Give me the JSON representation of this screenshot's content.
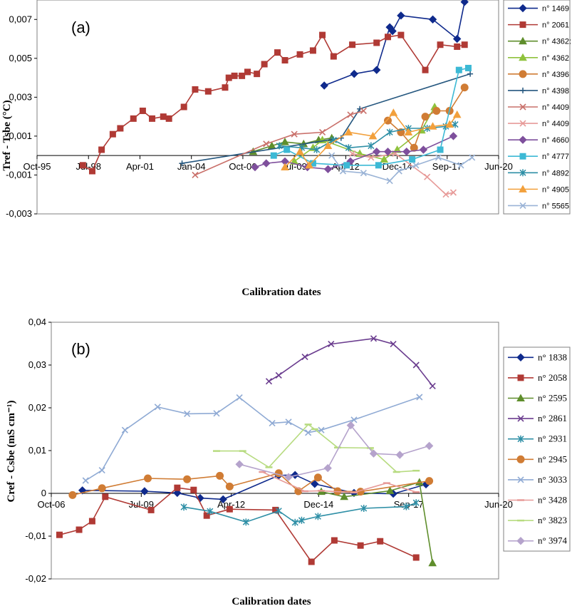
{
  "chart_data": [
    {
      "panel_label": "(a)",
      "type": "line",
      "xlabel": "Calibration dates",
      "ylabel": "Tref - Tsbe (°C)",
      "x_ticks": [
        "Oct-95",
        "Jul-98",
        "Apr-01",
        "Jan-04",
        "Oct-06",
        "Jul-09",
        "Apr-12",
        "Dec-14",
        "Sep-17",
        "Jun-20"
      ],
      "x_tick_years": [
        1995.75,
        1998.5,
        2001.25,
        2004.0,
        2006.75,
        2009.5,
        2012.25,
        2015.0,
        2017.67,
        2020.42
      ],
      "xlim": [
        1995.75,
        2020.42
      ],
      "ylim": [
        -0.003,
        0.008
      ],
      "y_ticks": [
        -0.003,
        -0.001,
        0.001,
        0.003,
        0.005,
        0.007
      ],
      "y_tick_labels": [
        "-0,003",
        "-0,001",
        "0,001",
        "0,003",
        "0,005",
        "0,007"
      ],
      "series": [
        {
          "name": "n° 1469",
          "color": "#0f2a8c",
          "marker": "diamond",
          "x": [
            2011.1,
            2012.7,
            2013.9,
            2014.6,
            2014.75,
            2015.2,
            2016.9,
            2018.2,
            2018.6
          ],
          "y": [
            0.0036,
            0.0042,
            0.0044,
            0.0066,
            0.0064,
            0.0072,
            0.007,
            0.006,
            0.0079
          ]
        },
        {
          "name": "n° 2061",
          "color": "#b03a35",
          "marker": "square",
          "x": [
            1998.2,
            1998.7,
            1999.2,
            1999.8,
            2000.2,
            2000.9,
            2001.4,
            2001.9,
            2002.5,
            2002.8,
            2003.6,
            2004.2,
            2004.9,
            2005.8,
            2006.0,
            2006.3,
            2006.7,
            2007.0,
            2007.5,
            2007.9,
            2008.6,
            2009.0,
            2009.8,
            2010.5,
            2011.0,
            2011.6,
            2012.6,
            2013.9,
            2014.5,
            2015.2,
            2016.5,
            2017.3,
            2018.2,
            2018.6
          ],
          "y": [
            -0.0005,
            -0.0008,
            0.0003,
            0.0011,
            0.0014,
            0.0019,
            0.0023,
            0.0019,
            0.002,
            0.0019,
            0.0025,
            0.0034,
            0.0033,
            0.0035,
            0.004,
            0.0041,
            0.0041,
            0.0043,
            0.0042,
            0.0047,
            0.0053,
            0.0049,
            0.0052,
            0.0054,
            0.0062,
            0.0051,
            0.0057,
            0.0058,
            0.0061,
            0.0062,
            0.0044,
            0.0057,
            0.0056,
            0.0057
          ]
        },
        {
          "name": "n° 4362:",
          "color": "#5f8e2c",
          "marker": "triangle",
          "x": [
            2007.3,
            2008.3,
            2009.0,
            2010.0,
            2010.8,
            2011.5
          ],
          "y": [
            0.0002,
            0.0005,
            0.0007,
            0.0006,
            0.0008,
            0.0009
          ]
        },
        {
          "name": "n° 4362",
          "color": "#8fc23c",
          "marker": "triangle",
          "x": [
            2009.5,
            2010.5,
            2011.0,
            2013.0,
            2014.3,
            2015.0,
            2016.3,
            2017.0
          ],
          "y": [
            -0.0003,
            0.0004,
            0.0008,
            0.0001,
            -0.0002,
            0.0003,
            0.0013,
            0.0025
          ]
        },
        {
          "name": "n° 4396",
          "color": "#d07c34",
          "marker": "circle",
          "x": [
            2014.5,
            2015.2,
            2015.9,
            2016.5,
            2017.1,
            2017.8,
            2018.6
          ],
          "y": [
            0.0018,
            0.0012,
            0.0004,
            0.002,
            0.0023,
            0.0023,
            0.0035
          ]
        },
        {
          "name": "n° 4398",
          "color": "#25577f",
          "marker": "plus",
          "x": [
            2003.5,
            2012.0,
            2013.0,
            2018.9
          ],
          "y": [
            -0.0004,
            0.0009,
            0.0024,
            0.0042
          ]
        },
        {
          "name": "n° 4409",
          "color": "#c9706a",
          "marker": "cross",
          "x": [
            2004.2,
            2008.0,
            2009.5,
            2011.0,
            2012.5,
            2013.2
          ],
          "y": [
            -0.001,
            0.0006,
            0.0011,
            0.0012,
            0.0021,
            0.0023
          ]
        },
        {
          "name": "n° 4409",
          "color": "#e79a98",
          "marker": "cross",
          "x": [
            2012.6,
            2013.6,
            2014.9,
            2016.6,
            2017.6,
            2018.0
          ],
          "y": [
            0.0001,
            -0.0001,
            0.0001,
            -0.0011,
            -0.002,
            -0.0019
          ]
        },
        {
          "name": "n° 4660",
          "color": "#7e4f9c",
          "marker": "diamond",
          "x": [
            2007.4,
            2008.0,
            2009.0,
            2010.2,
            2011.3,
            2012.5,
            2013.9,
            2014.5,
            2015.5,
            2016.4,
            2018.0
          ],
          "y": [
            -0.0006,
            -0.0004,
            -0.0003,
            -0.0006,
            -0.0007,
            -0.0003,
            0.0002,
            0.0002,
            0.0002,
            0.0003,
            0.001
          ]
        },
        {
          "name": "n° 4777",
          "color": "#3cb9d5",
          "marker": "square",
          "x": [
            2008.4,
            2009.1,
            2010.5,
            2012.3,
            2014.0,
            2015.8,
            2017.3,
            2018.3,
            2018.8
          ],
          "y": [
            0.0,
            0.0003,
            -0.0004,
            -0.0005,
            -0.0005,
            -0.0002,
            0.0003,
            0.0044,
            0.0045
          ]
        },
        {
          "name": "n° 4892",
          "color": "#2e8fa6",
          "marker": "asterisk",
          "x": [
            2008.7,
            2009.9,
            2010.7,
            2011.6,
            2012.4,
            2013.6,
            2014.6,
            2015.6,
            2016.6,
            2017.6,
            2018.1
          ],
          "y": [
            0.0005,
            0.0004,
            0.0003,
            0.0008,
            0.0004,
            0.0005,
            0.0012,
            0.0014,
            0.0014,
            0.0015,
            0.0016
          ]
        },
        {
          "name": "n° 4905",
          "color": "#f2a03c",
          "marker": "triangle",
          "x": [
            2009.0,
            2009.8,
            2010.3,
            2011.3,
            2012.4,
            2013.7,
            2014.8,
            2015.6,
            2016.9,
            2017.8,
            2018.2
          ],
          "y": [
            -0.0006,
            0.0002,
            -0.0005,
            0.0005,
            0.0012,
            0.001,
            0.0022,
            0.0012,
            0.0015,
            0.0016,
            0.0021
          ]
        },
        {
          "name": "n° 5565",
          "color": "#9ab3d6",
          "marker": "cross",
          "x": [
            2011.5,
            2012.1,
            2013.2,
            2014.6,
            2015.1,
            2016.0,
            2017.2,
            2018.4,
            2019.0
          ],
          "y": [
            0.0,
            -0.0008,
            -0.0009,
            -0.0013,
            -0.0008,
            -0.0005,
            -0.0001,
            -0.0005,
            -0.0001
          ]
        }
      ]
    },
    {
      "panel_label": "(b)",
      "type": "line",
      "xlabel": "Calibration dates",
      "ylabel": "Cref - Csbe (mS cm⁻¹)",
      "x_ticks": [
        "Oct-06",
        "Jul-09",
        "Apr-12",
        "Dec-14",
        "Sep-17",
        "Jun-20"
      ],
      "x_tick_years": [
        2006.75,
        2009.5,
        2012.25,
        2014.92,
        2017.67,
        2020.42
      ],
      "xlim": [
        2006.75,
        2020.42
      ],
      "ylim": [
        -0.02,
        0.04
      ],
      "y_ticks": [
        -0.02,
        -0.01,
        0.0,
        0.01,
        0.02,
        0.03,
        0.04
      ],
      "y_tick_labels": [
        "-0,02",
        "-0,01",
        "0",
        "0,01",
        "0,02",
        "0,03",
        "0,04"
      ],
      "series": [
        {
          "name": "n° 1838",
          "color": "#0f2a8c",
          "marker": "diamond",
          "x": [
            2007.7,
            2009.6,
            2010.6,
            2011.3,
            2012.0,
            2013.7,
            2014.2,
            2014.8,
            2016.0,
            2017.2,
            2018.2
          ],
          "y": [
            0.0007,
            0.0005,
            0.0001,
            -0.0011,
            -0.0014,
            0.0042,
            0.0043,
            0.0022,
            0.0001,
            -0.0001,
            0.0021
          ]
        },
        {
          "name": "n° 2058",
          "color": "#b03a35",
          "marker": "square",
          "x": [
            2007.0,
            2007.6,
            2008.0,
            2008.4,
            2009.8,
            2010.6,
            2011.1,
            2011.5,
            2012.2,
            2013.6,
            2014.7,
            2015.4,
            2016.2,
            2016.8,
            2017.9
          ],
          "y": [
            -0.0097,
            -0.0085,
            -0.0065,
            -0.0008,
            -0.0039,
            0.0013,
            0.0008,
            -0.0052,
            -0.0037,
            -0.0039,
            -0.016,
            -0.011,
            -0.0122,
            -0.0112,
            -0.015
          ]
        },
        {
          "name": "n° 2595",
          "color": "#5f8e2c",
          "marker": "triangle",
          "x": [
            2015.0,
            2015.7,
            2017.1,
            2018.0,
            2018.4
          ],
          "y": [
            0.0004,
            -0.0008,
            0.0006,
            0.0026,
            -0.0163
          ]
        },
        {
          "name": "n° 2861",
          "color": "#6b3d8f",
          "marker": "cross",
          "x": [
            2013.4,
            2013.7,
            2014.5,
            2015.3,
            2016.6,
            2017.2,
            2017.9,
            2018.4
          ],
          "y": [
            0.0262,
            0.0276,
            0.0319,
            0.0349,
            0.0362,
            0.0349,
            0.03,
            0.0251
          ]
        },
        {
          "name": "n° 2931",
          "color": "#2e8fa6",
          "marker": "asterisk",
          "x": [
            2010.8,
            2011.6,
            2012.7,
            2013.7,
            2014.2,
            2014.4,
            2014.9,
            2016.3,
            2017.6,
            2017.9
          ],
          "y": [
            -0.0032,
            -0.0042,
            -0.0067,
            -0.0041,
            -0.0068,
            -0.0063,
            -0.0054,
            -0.0035,
            -0.0031,
            -0.0022
          ]
        },
        {
          "name": "n° 2945",
          "color": "#d07c34",
          "marker": "circle",
          "x": [
            2007.4,
            2008.3,
            2009.7,
            2010.9,
            2011.9,
            2012.2,
            2013.7,
            2014.3,
            2014.9,
            2015.5,
            2016.2,
            2018.3
          ],
          "y": [
            -0.0004,
            0.0012,
            0.0035,
            0.0033,
            0.0041,
            0.0016,
            0.0047,
            0.0005,
            0.0037,
            0.0005,
            0.0004,
            0.0029
          ]
        },
        {
          "name": "n° 3033",
          "color": "#8faad4",
          "marker": "cross",
          "x": [
            2007.8,
            2008.3,
            2009.0,
            2010.0,
            2010.9,
            2011.8,
            2012.5,
            2013.5,
            2014.0,
            2014.6,
            2015.0,
            2016.0,
            2018.0
          ],
          "y": [
            0.003,
            0.0054,
            0.0148,
            0.0202,
            0.0186,
            0.0187,
            0.0224,
            0.0164,
            0.0167,
            0.0142,
            0.0148,
            0.0172,
            0.0225
          ]
        },
        {
          "name": "n° 3428",
          "color": "#e79a98",
          "marker": "dash",
          "x": [
            2013.2,
            2014.5,
            2015.0,
            2016.0,
            2017.0,
            2017.9
          ],
          "y": [
            0.005,
            0.0005,
            0.0006,
            0.0002,
            0.0024,
            0.0003
          ]
        },
        {
          "name": "n° 3823",
          "color": "#b7db80",
          "marker": "dash",
          "x": [
            2011.8,
            2012.6,
            2013.4,
            2014.6,
            2014.8,
            2015.5,
            2016.5,
            2017.3,
            2017.9
          ],
          "y": [
            0.0099,
            0.0099,
            0.0061,
            0.0161,
            0.015,
            0.0107,
            0.0106,
            0.005,
            0.0053
          ]
        },
        {
          "name": "n° 3974",
          "color": "#b5a3cc",
          "marker": "diamond",
          "x": [
            2012.5,
            2014.0,
            2015.2,
            2015.9,
            2016.6,
            2017.4,
            2018.3
          ],
          "y": [
            0.0068,
            0.0038,
            0.0059,
            0.0159,
            0.0093,
            0.009,
            0.0111
          ]
        }
      ]
    }
  ]
}
